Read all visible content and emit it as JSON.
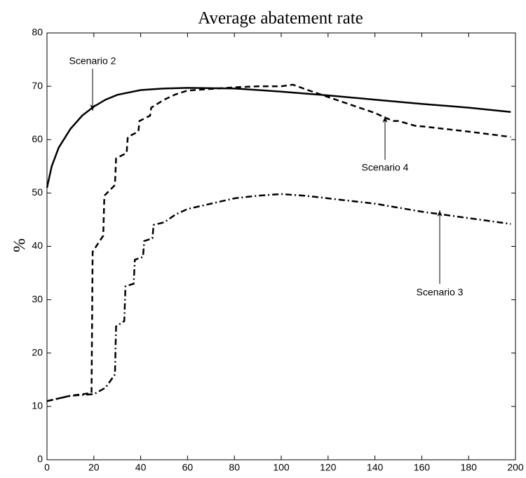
{
  "chart_data": {
    "type": "line",
    "title": "Average abatement rate",
    "y_label": "%",
    "xlim": [
      0,
      200
    ],
    "ylim": [
      0,
      80
    ],
    "xticks": [
      0,
      20,
      40,
      60,
      80,
      100,
      120,
      140,
      160,
      180,
      200
    ],
    "yticks": [
      0,
      10,
      20,
      30,
      40,
      50,
      60,
      70,
      80
    ],
    "series": [
      {
        "name": "Scenario 2",
        "color": "#000000",
        "style": "solid",
        "x": [
          0,
          2,
          5,
          10,
          15,
          20,
          25,
          30,
          40,
          50,
          60,
          80,
          100,
          120,
          140,
          160,
          180,
          198
        ],
        "values": [
          51,
          55,
          58.5,
          62,
          64.5,
          66.2,
          67.5,
          68.4,
          69.3,
          69.6,
          69.7,
          69.6,
          69,
          68.3,
          67.5,
          66.7,
          66,
          65.2
        ]
      },
      {
        "name": "Scenario 4",
        "color": "#000000",
        "style": "dashed",
        "x": [
          0,
          10,
          19,
          19.5,
          24,
          24.5,
          29,
          29.5,
          34,
          34.5,
          39,
          39.5,
          44,
          44.5,
          50,
          55,
          60,
          70,
          80,
          90,
          100,
          105,
          110,
          120,
          130,
          140,
          145,
          148,
          150,
          158,
          160,
          180,
          198
        ],
        "values": [
          11,
          12,
          12.5,
          39,
          42,
          49.5,
          51.5,
          56.5,
          57.5,
          60.5,
          61.5,
          63.5,
          64.5,
          66,
          67.5,
          68.5,
          69.2,
          69.5,
          69.8,
          70,
          70,
          70.3,
          69.5,
          68,
          66.5,
          65,
          64,
          63.5,
          63.5,
          62.5,
          62.5,
          61.5,
          60.5
        ]
      },
      {
        "name": "Scenario 3",
        "color": "#000000",
        "style": "dashdot",
        "x": [
          0,
          10,
          20,
          25,
          29,
          29.5,
          33,
          33.5,
          37,
          37.5,
          41,
          41.5,
          45,
          45.5,
          50,
          55,
          60,
          70,
          80,
          90,
          100,
          110,
          120,
          140,
          160,
          180,
          198
        ],
        "values": [
          11,
          12,
          12.3,
          13.5,
          16,
          25,
          26,
          32.5,
          33,
          37.5,
          38,
          41,
          41.5,
          44,
          44.5,
          46,
          47,
          48,
          49,
          49.5,
          49.8,
          49.5,
          49,
          48,
          46.5,
          45.3,
          44.2
        ]
      }
    ]
  }
}
